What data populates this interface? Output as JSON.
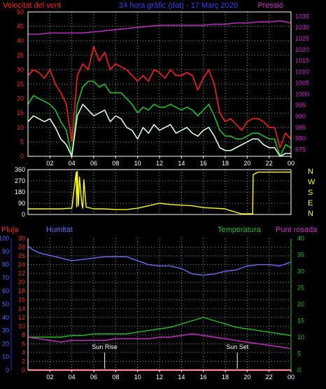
{
  "header": {
    "wind_label": "Velocitat del vent",
    "title": "24 hora gràfic (dat) - 17 Març 2020",
    "pressure_label": "Pressió"
  },
  "lower_header": {
    "rain_label": "Pluja",
    "humidity_label": "Humitat",
    "temperature_label": "Temperatura",
    "dewpoint_label": "Punt rosada"
  },
  "annotations": {
    "sunrise": "Sun Rise",
    "sunset": "Sun Set"
  },
  "compass": [
    "N",
    "W",
    "S",
    "E",
    "N"
  ],
  "colors": {
    "background": "#000000",
    "grid": "#8a8a8a",
    "axis": "#ffffff",
    "gust": "#ff1a1a",
    "wind_avg": "#19c619",
    "wind_speed": "#d8ffd8",
    "pressure": "#d428d4",
    "direction": "#ffff00",
    "rain": "#ff2222",
    "humidity": "#6a6aff",
    "temperature": "#18c218",
    "dewpoint": "#d428d4"
  },
  "chart_data": [
    {
      "type": "line",
      "name": "wind-pressure",
      "x_ticks": [
        "02",
        "04",
        "06",
        "08",
        "10",
        "12",
        "14",
        "16",
        "18",
        "20",
        "22",
        "00"
      ],
      "xlim": [
        0,
        24
      ],
      "left_axis": {
        "ticks": [
          0,
          5,
          10,
          15,
          20,
          25,
          30,
          35,
          40,
          45,
          50
        ],
        "ylim": [
          0,
          50
        ]
      },
      "right_axis": {
        "ticks": [
          975,
          980,
          985,
          990,
          995,
          1000,
          1005,
          1010,
          1015,
          1020,
          1025,
          1030,
          1035
        ],
        "ylim": [
          972,
          1037
        ]
      },
      "series": [
        {
          "key": "gust",
          "x": [
            0,
            0.5,
            1,
            1.5,
            2,
            2.5,
            3,
            3.5,
            4,
            4.5,
            5,
            5.5,
            6,
            6.5,
            7,
            7.5,
            8,
            8.5,
            9,
            9.5,
            10,
            10.5,
            11,
            11.5,
            12,
            12.5,
            13,
            13.5,
            14,
            14.5,
            15,
            15.5,
            16,
            16.5,
            17,
            17.5,
            18,
            18.5,
            19,
            19.5,
            20,
            20.5,
            21,
            21.5,
            22,
            22.5,
            23,
            23.5,
            24
          ],
          "values": [
            28,
            30,
            29,
            27,
            30,
            25,
            22,
            18,
            5,
            28,
            32,
            30,
            38,
            33,
            36,
            30,
            32,
            31,
            30,
            28,
            26,
            28,
            26,
            30,
            29,
            27,
            30,
            28,
            28,
            29,
            28,
            23,
            27,
            30,
            25,
            15,
            12,
            13,
            11,
            9,
            12,
            13,
            13,
            12,
            10,
            10,
            3,
            8,
            6
          ]
        },
        {
          "key": "wind_avg",
          "x": [
            0,
            0.5,
            1,
            1.5,
            2,
            2.5,
            3,
            3.5,
            4,
            4.5,
            5,
            5.5,
            6,
            6.5,
            7,
            7.5,
            8,
            8.5,
            9,
            9.5,
            10,
            10.5,
            11,
            11.5,
            12,
            12.5,
            13,
            13.5,
            14,
            14.5,
            15,
            15.5,
            16,
            16.5,
            17,
            17.5,
            18,
            18.5,
            19,
            19.5,
            20,
            20.5,
            21,
            21.5,
            22,
            22.5,
            23,
            23.5,
            24
          ],
          "values": [
            18,
            21,
            20,
            19,
            18,
            16,
            12,
            9,
            0,
            18,
            24,
            26,
            26,
            24,
            25,
            22,
            22,
            22,
            20,
            18,
            15,
            17,
            16,
            18,
            17,
            17,
            18,
            17,
            16,
            17,
            16,
            14,
            16,
            18,
            14,
            9,
            7,
            7,
            6,
            6,
            7,
            8,
            8,
            7,
            6,
            6,
            0,
            4,
            3
          ]
        },
        {
          "key": "wind_speed",
          "x": [
            0,
            0.5,
            1,
            1.5,
            2,
            2.5,
            3,
            3.5,
            4,
            4.5,
            5,
            5.5,
            6,
            6.5,
            7,
            7.5,
            8,
            8.5,
            9,
            9.5,
            10,
            10.5,
            11,
            11.5,
            12,
            12.5,
            13,
            13.5,
            14,
            14.5,
            15,
            15.5,
            16,
            16.5,
            17,
            17.5,
            18,
            18.5,
            19,
            19.5,
            20,
            20.5,
            21,
            21.5,
            22,
            22.5,
            23,
            23.5,
            24
          ],
          "values": [
            12,
            14,
            13,
            12,
            13,
            10,
            6,
            4,
            0,
            14,
            18,
            16,
            14,
            15,
            16,
            12,
            14,
            13,
            10,
            9,
            6,
            10,
            8,
            11,
            9,
            10,
            11,
            8,
            9,
            10,
            8,
            7,
            9,
            10,
            7,
            3,
            2,
            2,
            3,
            4,
            5,
            6,
            6,
            4,
            3,
            3,
            0,
            1,
            1
          ]
        },
        {
          "key": "pressure",
          "x": [
            0,
            1,
            2,
            3,
            4,
            5,
            6,
            7,
            8,
            9,
            10,
            11,
            12,
            13,
            14,
            15,
            16,
            17,
            18,
            19,
            20,
            21,
            22,
            23,
            24
          ],
          "values": [
            1027,
            1027,
            1027.5,
            1027.5,
            1027.5,
            1027.5,
            1028,
            1028.5,
            1029,
            1029.5,
            1030,
            1030.5,
            1031,
            1031,
            1031,
            1031,
            1031,
            1031.5,
            1031.5,
            1032,
            1032,
            1032.5,
            1032.5,
            1033,
            1032
          ]
        }
      ]
    },
    {
      "type": "line",
      "name": "wind-direction",
      "x_ticks": [
        "02",
        "04",
        "06",
        "08",
        "10",
        "12",
        "14",
        "16",
        "18",
        "20",
        "22",
        "00"
      ],
      "xlim": [
        0,
        24
      ],
      "y_ticks": [
        0,
        90,
        180,
        270,
        360
      ],
      "ylim": [
        0,
        360
      ],
      "series": [
        {
          "key": "direction",
          "x": [
            0,
            1,
            2,
            3,
            4,
            4.4,
            4.45,
            4.5,
            4.6,
            4.7,
            4.9,
            5,
            5.1,
            5.3,
            6,
            7,
            8,
            9,
            10,
            11,
            12,
            13,
            14,
            15,
            16,
            17,
            18,
            18.5,
            19.5,
            20.5,
            20.55,
            21,
            22,
            23,
            24
          ],
          "values": [
            45,
            45,
            45,
            45,
            50,
            340,
            60,
            345,
            70,
            300,
            90,
            50,
            280,
            60,
            45,
            45,
            40,
            40,
            50,
            70,
            90,
            80,
            75,
            70,
            55,
            50,
            45,
            30,
            5,
            5,
            320,
            340,
            340,
            340,
            340
          ]
        }
      ]
    },
    {
      "type": "line",
      "name": "temperature-humidity",
      "x_ticks": [
        "02",
        "04",
        "06",
        "08",
        "10",
        "12",
        "14",
        "16",
        "18",
        "20",
        "22",
        "00"
      ],
      "xlim": [
        0,
        24
      ],
      "axes": {
        "rain": {
          "ticks": [
            0,
            10,
            20,
            30,
            40,
            50,
            60,
            70,
            80,
            90,
            100
          ],
          "ylim": [
            0,
            100
          ]
        },
        "dewpoint_scale": {
          "ticks": [
            0,
            2,
            4,
            6,
            8,
            10,
            12,
            14,
            16,
            18,
            20,
            22,
            24,
            26,
            28,
            30
          ],
          "ylim": [
            0,
            30
          ]
        },
        "temperature": {
          "ticks": [
            0,
            5,
            10,
            15,
            20,
            25,
            30,
            35,
            40
          ],
          "ylim": [
            0,
            40
          ]
        }
      },
      "series": [
        {
          "key": "rain",
          "axis": "rain",
          "x": [
            0,
            24
          ],
          "values": [
            0,
            0
          ]
        },
        {
          "key": "humidity",
          "axis": "rain",
          "x": [
            0,
            0.5,
            1,
            2,
            3,
            4,
            5,
            6,
            7,
            8,
            9,
            10,
            11,
            12,
            13,
            14,
            15,
            16,
            17,
            18,
            19,
            20,
            21,
            22,
            23,
            24
          ],
          "values": [
            94,
            91,
            89,
            87,
            85,
            83,
            84,
            85,
            86,
            86,
            86,
            83,
            80,
            79,
            79,
            77,
            73,
            72,
            73,
            75,
            76,
            79,
            80,
            80,
            79,
            82
          ]
        },
        {
          "key": "temperature",
          "axis": "temperature",
          "x": [
            0,
            1,
            2,
            3,
            4,
            5,
            6,
            7,
            8,
            9,
            10,
            11,
            12,
            13,
            14,
            15,
            16,
            17,
            18,
            19,
            20,
            21,
            22,
            23,
            24
          ],
          "values": [
            10,
            10,
            10,
            10,
            10.5,
            10.5,
            11,
            11,
            11,
            11,
            11.5,
            12,
            12.5,
            13,
            14,
            15,
            16,
            15,
            14,
            13,
            12.5,
            12,
            11.5,
            11,
            10.5
          ]
        },
        {
          "key": "dewpoint",
          "axis": "temperature",
          "x": [
            0,
            1,
            2,
            3,
            4,
            5,
            6,
            7,
            8,
            9,
            10,
            11,
            12,
            13,
            14,
            15,
            16,
            17,
            18,
            19,
            20,
            21,
            22,
            23,
            24
          ],
          "values": [
            10,
            9.5,
            9,
            8.5,
            9,
            9,
            9,
            9,
            9.5,
            9.5,
            9.5,
            9.5,
            10,
            10,
            10.5,
            11,
            10.5,
            10,
            9.5,
            9,
            8.5,
            8,
            7.5,
            7,
            6.5
          ]
        }
      ],
      "markers": [
        {
          "label_key": "sunrise",
          "x": 7.0
        },
        {
          "label_key": "sunset",
          "x": 19.1
        }
      ]
    }
  ]
}
